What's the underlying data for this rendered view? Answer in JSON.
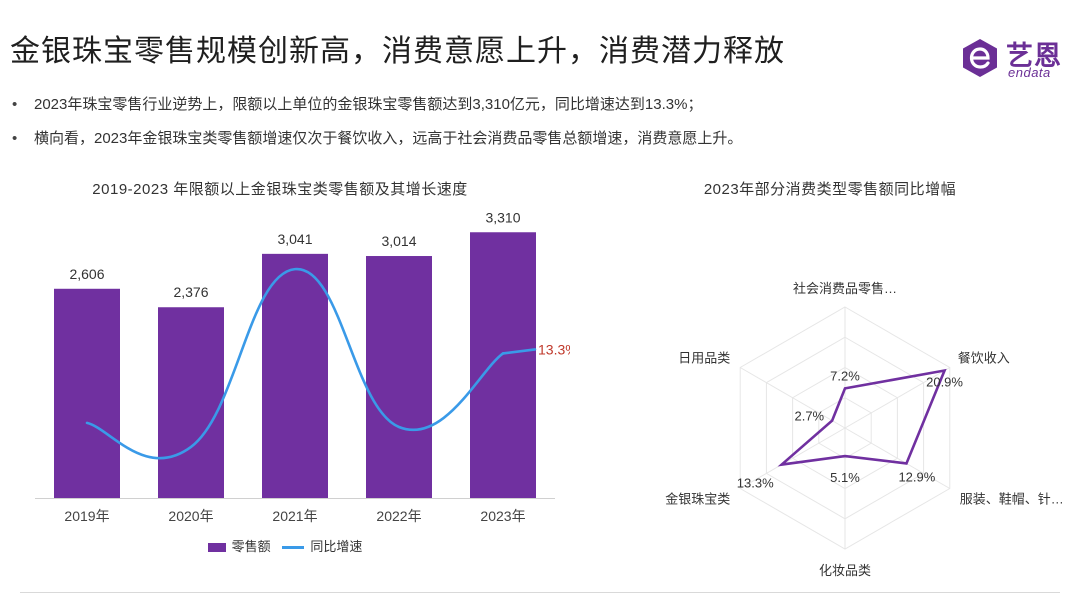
{
  "page": {
    "title": "金银珠宝零售规模创新高，消费意愿上升，消费潜力释放",
    "bullets": [
      "2023年珠宝零售行业逆势上，限额以上单位的金银珠宝零售额达到3,310亿元，同比增速达到13.3%；",
      "横向看，2023年金银珠宝类零售额增速仅次于餐饮收入，远高于社会消费品零售总额增速，消费意愿上升。"
    ],
    "bullet_symbol": "•"
  },
  "logo": {
    "name_cn": "艺恩",
    "name_en": "endata"
  },
  "chart_data": [
    {
      "type": "bar",
      "title": "2019-2023 年限额以上金银珠宝类零售额及其增长速度",
      "categories": [
        "2019年",
        "2020年",
        "2021年",
        "2022年",
        "2023年"
      ],
      "series": [
        {
          "name": "零售额",
          "type": "bar",
          "values": [
            2606,
            2376,
            3041,
            3014,
            3310
          ],
          "labels": [
            "2,606",
            "2,376",
            "3,041",
            "3,014",
            "3,310"
          ]
        },
        {
          "name": "同比增速",
          "type": "line",
          "smooth": true,
          "values": [
            -0.3,
            -5.0,
            29.8,
            -1.1,
            13.3
          ],
          "visible_label": "13.3%"
        }
      ],
      "ylim": [
        0,
        3500
      ],
      "y2lim": [
        -15,
        40
      ],
      "legend_position": "bottom",
      "colors": {
        "bar": "#7030a0",
        "line": "#3a9ae8",
        "highlight_label": "#c0392b"
      }
    },
    {
      "type": "radar",
      "title": "2023年部分消费类型零售额同比增幅",
      "axes": [
        "社会消费品零售…",
        "餐饮收入",
        "服装、鞋帽、针…",
        "化妆品类",
        "金银珠宝类",
        "日用品类"
      ],
      "values": [
        7.2,
        20.9,
        12.9,
        5.1,
        13.3,
        2.7
      ],
      "value_labels": [
        "7.2%",
        "20.9%",
        "12.9%",
        "5.1%",
        "13.3%",
        "2.7%"
      ],
      "rmax": 22,
      "rings": 4,
      "colors": {
        "line": "#7030a0",
        "grid": "#e6e6e6"
      }
    }
  ]
}
